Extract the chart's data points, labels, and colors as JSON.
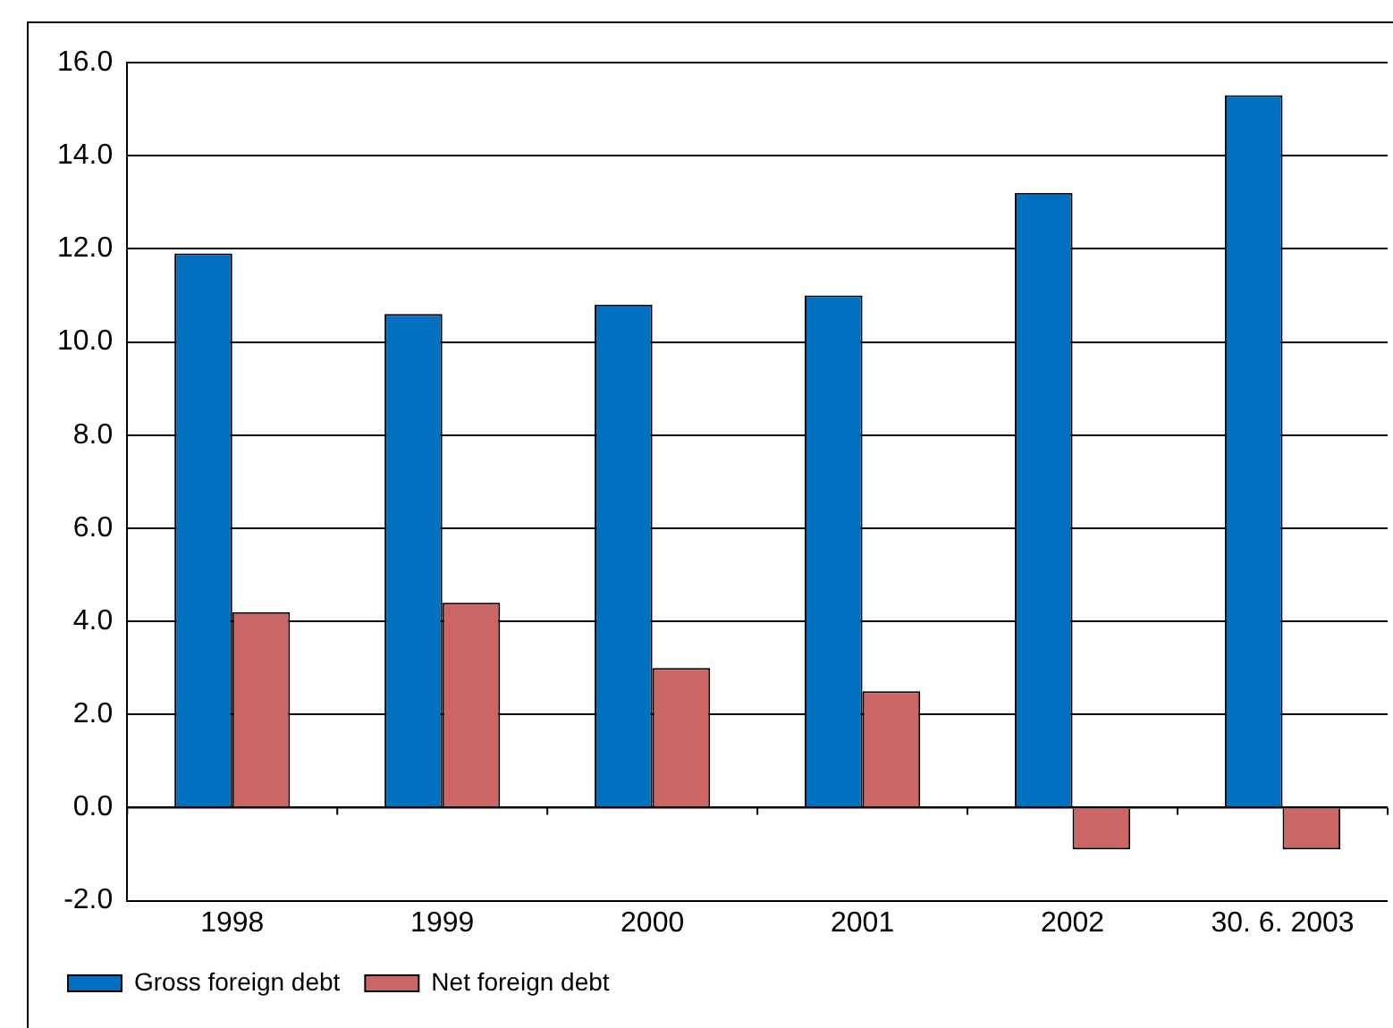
{
  "chart_data": {
    "type": "bar",
    "categories": [
      "1998",
      "1999",
      "2000",
      "2001",
      "2002",
      "30. 6. 2003"
    ],
    "series": [
      {
        "name": "Gross foreign debt",
        "color": "#0070c0",
        "values": [
          11.9,
          10.6,
          10.8,
          11.0,
          13.2,
          15.3
        ]
      },
      {
        "name": "Net foreign debt",
        "color": "#cc6666",
        "values": [
          4.2,
          4.4,
          3.0,
          2.5,
          -0.9,
          -0.9
        ]
      }
    ],
    "ylim": [
      -2,
      16
    ],
    "yticks": [
      {
        "value": -2,
        "label": "-2.0"
      },
      {
        "value": 0,
        "label": "0.0"
      },
      {
        "value": 2,
        "label": "2.0"
      },
      {
        "value": 4,
        "label": "4.0"
      },
      {
        "value": 6,
        "label": "6.0"
      },
      {
        "value": 8,
        "label": "8.0"
      },
      {
        "value": 10,
        "label": "10.0"
      },
      {
        "value": 12,
        "label": "12.0"
      },
      {
        "value": 14,
        "label": "14.0"
      },
      {
        "value": 16,
        "label": "16.0"
      }
    ],
    "grid": "y",
    "legend": "bottom left"
  }
}
